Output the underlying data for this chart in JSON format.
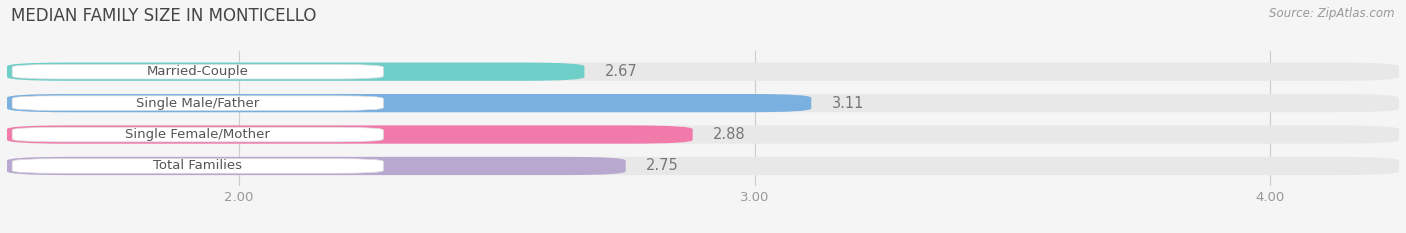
{
  "title": "MEDIAN FAMILY SIZE IN MONTICELLO",
  "source": "Source: ZipAtlas.com",
  "categories": [
    "Married-Couple",
    "Single Male/Father",
    "Single Female/Mother",
    "Total Families"
  ],
  "values": [
    2.67,
    3.11,
    2.88,
    2.75
  ],
  "bar_colors": [
    "#6ecfc8",
    "#7ab0e0",
    "#f07aaa",
    "#b8a8d0"
  ],
  "bar_bg_color": "#e8e8e8",
  "background_color": "#f5f5f5",
  "xlim": [
    1.55,
    4.25
  ],
  "x_axis_min": 2.0,
  "xticks": [
    2.0,
    3.0,
    4.0
  ],
  "xticklabels": [
    "2.00",
    "3.00",
    "4.00"
  ],
  "bar_height": 0.58,
  "value_fontsize": 10.5,
  "label_fontsize": 9.5,
  "title_fontsize": 12,
  "source_fontsize": 8.5
}
